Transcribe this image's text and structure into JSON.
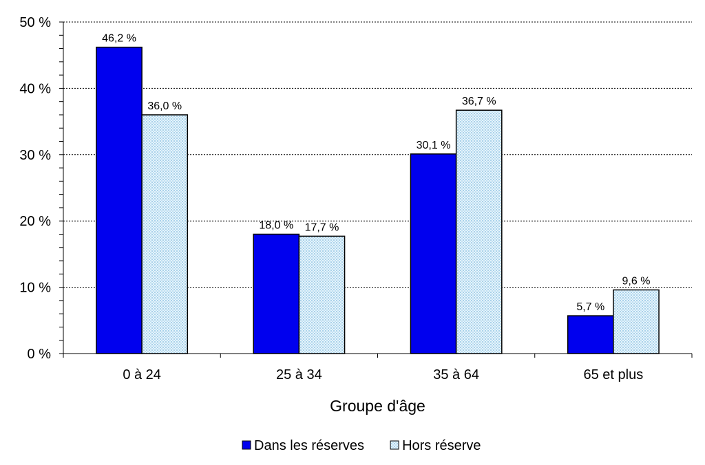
{
  "chart_data": {
    "type": "bar",
    "title": "",
    "xlabel": "Groupe d'âge",
    "ylabel": "",
    "categories": [
      "0 à 24",
      "25 à 34",
      "35 à 64",
      "65 et plus"
    ],
    "series": [
      {
        "name": "Dans les réserves",
        "values": [
          46.2,
          18.0,
          30.1,
          5.7
        ],
        "labels": [
          "46,2 %",
          "18,0 %",
          "30,1 %",
          "5,7 %"
        ],
        "color": "#0000ee"
      },
      {
        "name": "Hors réserve",
        "values": [
          36.0,
          17.7,
          36.7,
          9.6
        ],
        "labels": [
          "36,0 %",
          "17,7 %",
          "36,7 %",
          "9,6 %"
        ],
        "color": "#d6ecf7"
      }
    ],
    "ylim": [
      0,
      50
    ],
    "yticks": [
      0,
      10,
      20,
      30,
      40,
      50
    ],
    "ytick_labels": [
      "0 %",
      "10 %",
      "20 %",
      "30 %",
      "40 %",
      "50 %"
    ],
    "grid": "horizontal dashed",
    "legend": "bottom-center"
  }
}
